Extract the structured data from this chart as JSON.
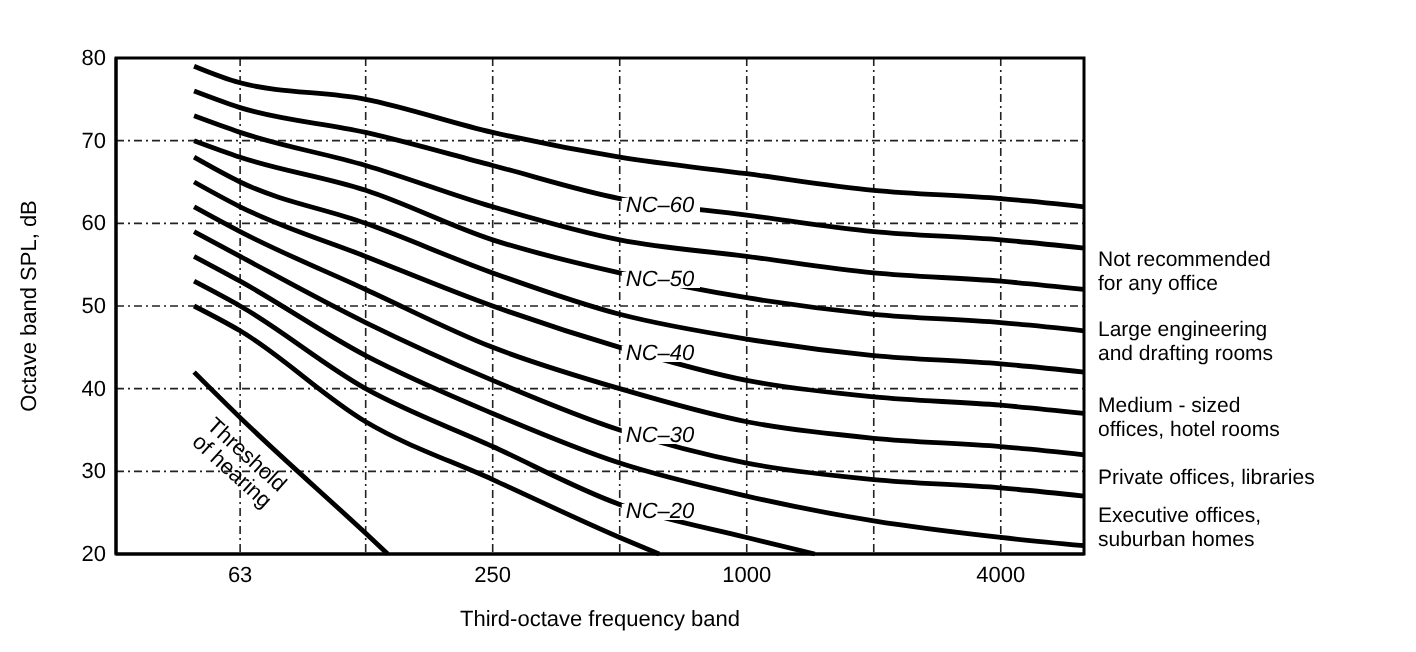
{
  "chart_data": {
    "type": "line",
    "xlabel": "Third-octave frequency band",
    "ylabel": "Octave band SPL, dB",
    "log": "x",
    "grid": true,
    "marker": "none",
    "line_style": "solid",
    "xlim": [
      32,
      6300
    ],
    "ylim": [
      20,
      80
    ],
    "xticks": [
      63,
      {
        "value": 125,
        "label": null
      },
      250,
      {
        "value": 500,
        "label": null
      },
      1000,
      {
        "value": 2000,
        "label": null
      },
      4000
    ],
    "yticks": [
      20,
      30,
      40,
      50,
      60,
      70,
      80
    ],
    "series": [
      {
        "color": "#000000",
        "x": [
          49,
          63,
          125,
          250,
          500,
          1000,
          2000,
          4000,
          6300
        ],
        "values": [
          79,
          77,
          75,
          71,
          68,
          66,
          64,
          63,
          62
        ]
      },
      {
        "color": "#000000",
        "x": [
          49,
          63,
          125,
          250,
          500,
          1000,
          2000,
          4000,
          6300
        ],
        "values": [
          76,
          74,
          71,
          67,
          63,
          61,
          59,
          58,
          57
        ]
      },
      {
        "color": "#000000",
        "x": [
          49,
          63,
          125,
          250,
          500,
          1000,
          2000,
          4000,
          6300
        ],
        "values": [
          73,
          71,
          67,
          62,
          58,
          56,
          54,
          53,
          52
        ]
      },
      {
        "color": "#000000",
        "x": [
          49,
          63,
          125,
          250,
          500,
          1000,
          2000,
          4000,
          6300
        ],
        "values": [
          70,
          68,
          64,
          58,
          54,
          51,
          49,
          48,
          47
        ]
      },
      {
        "color": "#000000",
        "x": [
          49,
          63,
          125,
          250,
          500,
          1000,
          2000,
          4000,
          6300
        ],
        "values": [
          68,
          65,
          60,
          54,
          49,
          46,
          44,
          43,
          42
        ]
      },
      {
        "color": "#000000",
        "x": [
          49,
          63,
          125,
          250,
          500,
          1000,
          2000,
          4000,
          6300
        ],
        "values": [
          65,
          62,
          56,
          50,
          45,
          41,
          39,
          38,
          37
        ]
      },
      {
        "color": "#000000",
        "x": [
          49,
          63,
          125,
          250,
          500,
          1000,
          2000,
          4000,
          6300
        ],
        "values": [
          62,
          59,
          52,
          45,
          40,
          36,
          34,
          33,
          32
        ]
      },
      {
        "color": "#000000",
        "x": [
          49,
          63,
          125,
          250,
          500,
          1000,
          2000,
          4000,
          6300
        ],
        "values": [
          59,
          56,
          48,
          41,
          35,
          31,
          29,
          28,
          27
        ]
      },
      {
        "color": "#000000",
        "x": [
          49,
          63,
          125,
          250,
          500,
          1000,
          2000,
          4000,
          6300
        ],
        "values": [
          56,
          53,
          44,
          37,
          31,
          27,
          24,
          22,
          21
        ]
      },
      {
        "color": "#000000",
        "x": [
          49,
          63,
          125,
          250,
          500,
          1000,
          1450
        ],
        "values": [
          53,
          50,
          40,
          33,
          26,
          22,
          20
        ]
      },
      {
        "color": "#000000",
        "x": [
          49,
          63,
          125,
          250,
          500,
          620
        ],
        "values": [
          50,
          47,
          36,
          29,
          22,
          20
        ]
      },
      {
        "color": "#000000",
        "x": [
          49,
          63,
          125,
          141
        ],
        "values": [
          42,
          36.5,
          22.5,
          20
        ]
      }
    ],
    "annotations": [
      "NC–60",
      "NC–50",
      "NC–40",
      "NC–30",
      "NC–20",
      "Threshold\nof hearing",
      "Not recommended\nfor any office",
      "Large engineering\nand drafting rooms",
      "Medium - sized\noffices, hotel rooms",
      "Private offices, libraries",
      "Executive offices,\nsuburban homes"
    ]
  }
}
